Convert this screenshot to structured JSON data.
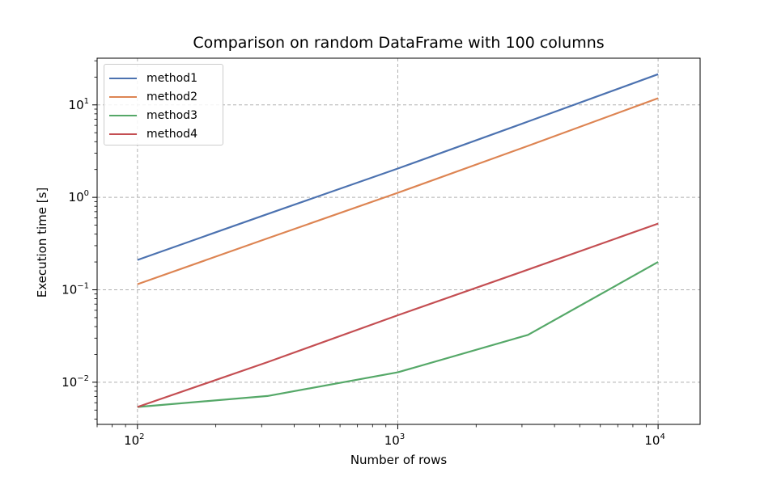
{
  "chart_data": {
    "type": "line",
    "title": "Comparison on random DataFrame with 100 columns",
    "xlabel": "Number of rows",
    "ylabel": "Execution time [s]",
    "xscale": "log",
    "yscale": "log",
    "xlim": [
      70,
      14500
    ],
    "ylim": [
      0.0035,
      32
    ],
    "grid": true,
    "legend_position": "top-left",
    "x": [
      100,
      316,
      1000,
      3162,
      10000
    ],
    "xticks": [
      {
        "value": 100,
        "base": "10",
        "exp": "2"
      },
      {
        "value": 1000,
        "base": "10",
        "exp": "3"
      },
      {
        "value": 10000,
        "base": "10",
        "exp": "4"
      }
    ],
    "yticks": [
      {
        "value": 0.01,
        "base": "10",
        "exp": "−2"
      },
      {
        "value": 0.1,
        "base": "10",
        "exp": "−1"
      },
      {
        "value": 1,
        "base": "10",
        "exp": "0"
      },
      {
        "value": 10,
        "base": "10",
        "exp": "1"
      }
    ],
    "series": [
      {
        "name": "method1",
        "color": "#4c72b0",
        "values": [
          0.21,
          0.66,
          2.05,
          6.6,
          21.5
        ]
      },
      {
        "name": "method2",
        "color": "#dd8452",
        "values": [
          0.115,
          0.36,
          1.12,
          3.6,
          11.8
        ]
      },
      {
        "name": "method3",
        "color": "#55a868",
        "values": [
          0.0054,
          0.0071,
          0.0128,
          0.0325,
          0.2
        ]
      },
      {
        "name": "method4",
        "color": "#c44e52",
        "values": [
          0.0054,
          0.0165,
          0.053,
          0.165,
          0.52
        ]
      }
    ]
  }
}
